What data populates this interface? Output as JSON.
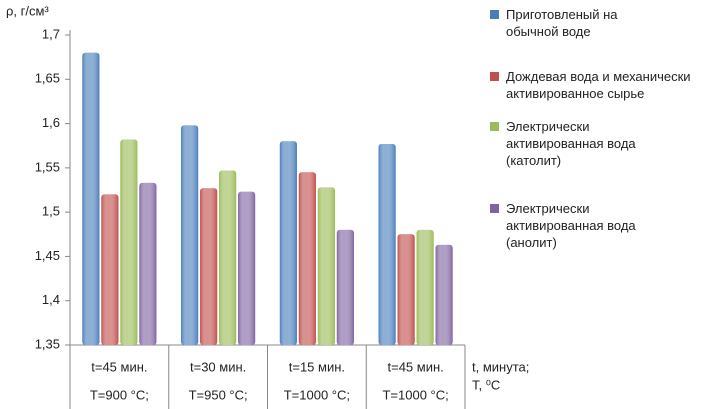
{
  "chart_data": {
    "type": "bar",
    "ylabel": "ρ, г/см³",
    "xlabel": [
      "t, минута;",
      "T, ⁰C"
    ],
    "categories": [
      [
        "t=45 мин.",
        "T=900 °C;"
      ],
      [
        "t=30 мин.",
        "T=950 °C;"
      ],
      [
        "t=15 мин.",
        "T=1000 °C;"
      ],
      [
        "t=45 мин.",
        "T=1000 °C;"
      ]
    ],
    "series": [
      {
        "name": "Приготовленый на обычной воде",
        "color": "#4a7ebb",
        "values": [
          1.68,
          1.598,
          1.58,
          1.577
        ]
      },
      {
        "name": "Дождевая вода и механически активированное сырье",
        "color": "#c0504d",
        "values": [
          1.52,
          1.527,
          1.545,
          1.475
        ]
      },
      {
        "name": "Электрически активированная вода (католит)",
        "color": "#9bbb59",
        "values": [
          1.582,
          1.547,
          1.528,
          1.48
        ]
      },
      {
        "name": "Электрически активированная вода (анолит)",
        "color": "#8064a2",
        "values": [
          1.533,
          1.523,
          1.48,
          1.463
        ]
      }
    ],
    "ylim": [
      1.35,
      1.7
    ],
    "yticks": [
      {
        "value": 1.35,
        "label": "1,35"
      },
      {
        "value": 1.4,
        "label": "1,4"
      },
      {
        "value": 1.45,
        "label": "1,45"
      },
      {
        "value": 1.5,
        "label": "1,5"
      },
      {
        "value": 1.55,
        "label": "1,55"
      },
      {
        "value": 1.6,
        "label": "1,6"
      },
      {
        "value": 1.65,
        "label": "1,65"
      },
      {
        "value": 1.7,
        "label": "1,7"
      }
    ],
    "legend": "right"
  }
}
